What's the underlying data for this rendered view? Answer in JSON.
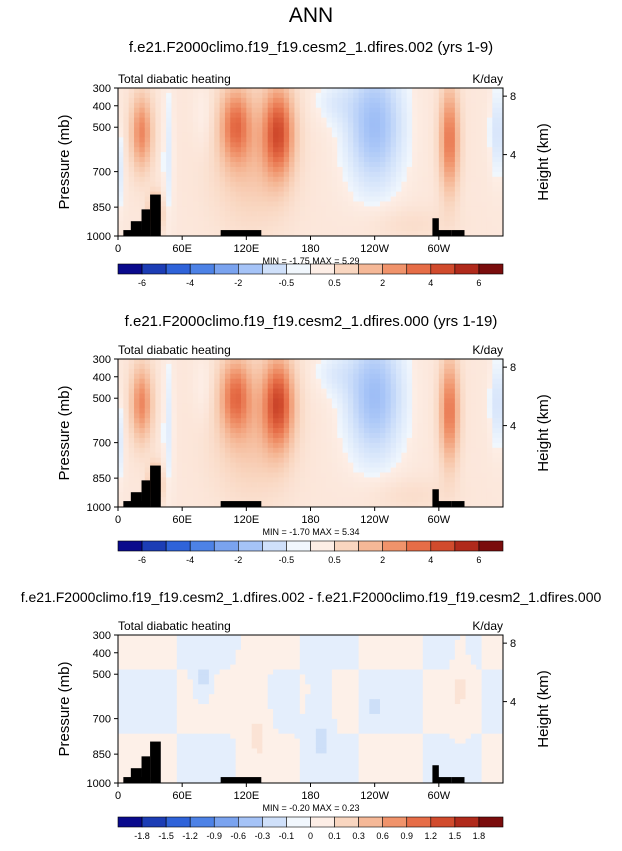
{
  "figure_title": "ANN",
  "chart_data": [
    {
      "type": "heatmap",
      "title": "f.e21.F2000climo.f19_f19.cesm2_1.dfires.002 (yrs 1-9)",
      "left_label": "Total diabatic heating",
      "units": "K/day",
      "xlabel": "",
      "ylabel": "Pressure (mb)",
      "ylabel_right": "Height (km)",
      "x_ticks": [
        "0",
        "60E",
        "120E",
        "180",
        "120W",
        "60W"
      ],
      "y_ticks": [
        "300",
        "400",
        "500",
        "700",
        "850",
        "1000"
      ],
      "y2_ticks": [
        "8",
        "4"
      ],
      "stats": "MIN = -1.75   MAX = 5.29",
      "min": -1.75,
      "max": 5.29,
      "colorbar_labels": [
        "-6",
        "-4",
        "-2",
        "-0.5",
        "0.5",
        "2",
        "4",
        "6"
      ],
      "colorbar_colors": [
        "#0a0a8c",
        "#1c3db5",
        "#2f63d9",
        "#4d82e6",
        "#7aa3ef",
        "#a5c3f7",
        "#cfe0fa",
        "#f1f7fd",
        "#fdeee6",
        "#f9d6c0",
        "#f5b897",
        "#f0936b",
        "#e66d47",
        "#d14b2d",
        "#b02a1b",
        "#7a0d0d"
      ]
    },
    {
      "type": "heatmap",
      "title": "f.e21.F2000climo.f19_f19.cesm2_1.dfires.000 (yrs 1-19)",
      "left_label": "Total diabatic heating",
      "units": "K/day",
      "xlabel": "",
      "ylabel": "Pressure (mb)",
      "ylabel_right": "Height (km)",
      "x_ticks": [
        "0",
        "60E",
        "120E",
        "180",
        "120W",
        "60W"
      ],
      "y_ticks": [
        "300",
        "400",
        "500",
        "700",
        "850",
        "1000"
      ],
      "y2_ticks": [
        "8",
        "4"
      ],
      "stats": "MIN = -1.70   MAX = 5.34",
      "min": -1.7,
      "max": 5.34,
      "colorbar_labels": [
        "-6",
        "-4",
        "-2",
        "-0.5",
        "0.5",
        "2",
        "4",
        "6"
      ],
      "colorbar_colors": [
        "#0a0a8c",
        "#1c3db5",
        "#2f63d9",
        "#4d82e6",
        "#7aa3ef",
        "#a5c3f7",
        "#cfe0fa",
        "#f1f7fd",
        "#fdeee6",
        "#f9d6c0",
        "#f5b897",
        "#f0936b",
        "#e66d47",
        "#d14b2d",
        "#b02a1b",
        "#7a0d0d"
      ]
    },
    {
      "type": "heatmap",
      "title": "f.e21.F2000climo.f19_f19.cesm2_1.dfires.002 - f.e21.F2000climo.f19_f19.cesm2_1.dfires.000",
      "left_label": "Total diabatic heating",
      "units": "K/day",
      "xlabel": "",
      "ylabel": "Pressure (mb)",
      "ylabel_right": "Height (km)",
      "x_ticks": [
        "0",
        "60E",
        "120E",
        "180",
        "120W",
        "60W"
      ],
      "y_ticks": [
        "300",
        "400",
        "500",
        "700",
        "850",
        "1000"
      ],
      "y2_ticks": [
        "8",
        "4"
      ],
      "stats": "MIN = -0.20   MAX = 0.23",
      "min": -0.2,
      "max": 0.23,
      "colorbar_labels": [
        "-1.8",
        "-1.5",
        "-1.2",
        "-0.9",
        "-0.6",
        "-0.3",
        "-0.1",
        "0",
        "0.1",
        "0.3",
        "0.6",
        "0.9",
        "1.2",
        "1.5",
        "1.8"
      ],
      "colorbar_colors": [
        "#0a0a8c",
        "#1c3db5",
        "#2f63d9",
        "#4d82e6",
        "#7aa3ef",
        "#a5c3f7",
        "#cfe0fa",
        "#f1f7fd",
        "#fdeee6",
        "#f9d6c0",
        "#f5b897",
        "#f0936b",
        "#e66d47",
        "#d14b2d",
        "#b02a1b",
        "#7a0d0d"
      ]
    }
  ]
}
